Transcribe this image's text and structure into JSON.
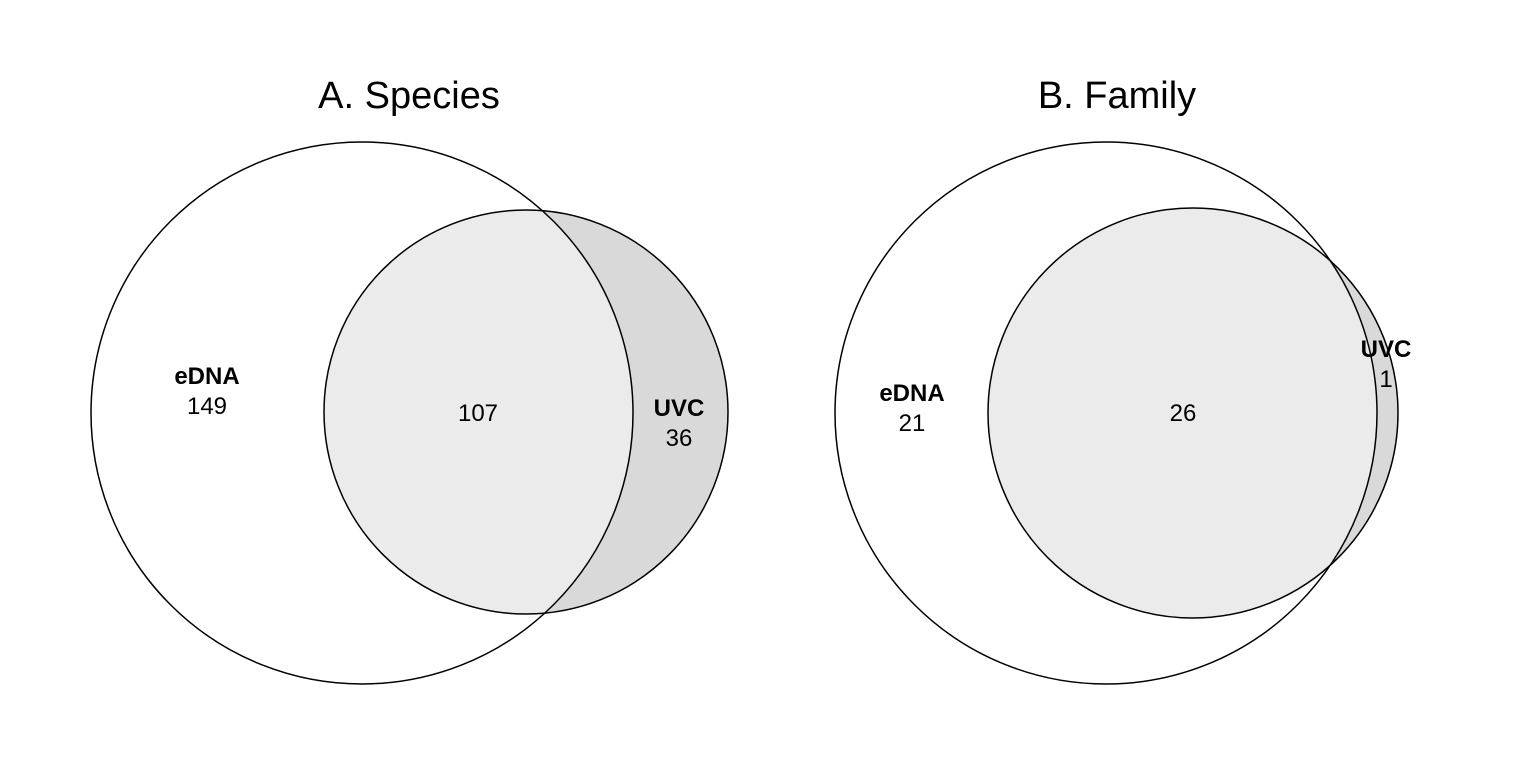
{
  "panels": [
    {
      "title": "A. Species",
      "set_a": {
        "name": "eDNA",
        "only_count": "149"
      },
      "set_b": {
        "name": "UVC",
        "only_count": "36"
      },
      "overlap_count": "107"
    },
    {
      "title": "B. Family",
      "set_a": {
        "name": "eDNA",
        "only_count": "21"
      },
      "set_b": {
        "name": "UVC",
        "only_count": "1"
      },
      "overlap_count": "26"
    }
  ],
  "colors": {
    "set_a_only": "#ffffff",
    "overlap": "#ebebeb",
    "set_b_only": "#d9d9d9",
    "stroke": "#000000"
  }
}
